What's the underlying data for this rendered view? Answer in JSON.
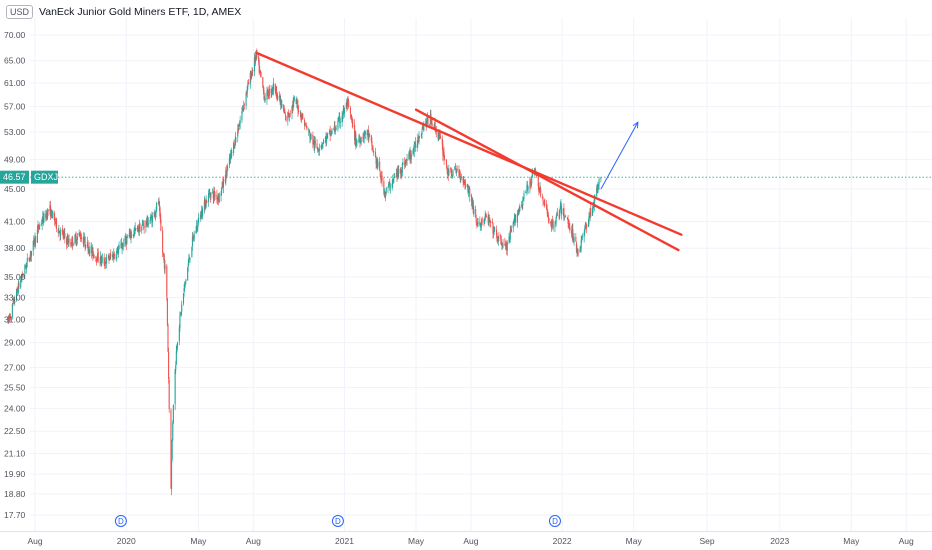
{
  "header": {
    "currency": "USD",
    "title": "VanEck Junior Gold Miners ETF, 1D, AMEX"
  },
  "colors": {
    "up": "#26a69a",
    "down": "#ef5350",
    "trendline": "#f23b2e",
    "arrow": "#2962ff",
    "last_price_line": "#26a69a",
    "symbol_tag": "#26a69a"
  },
  "chart_data": {
    "type": "candlestick",
    "symbol": "GDXJ",
    "last_price": 46.57,
    "last_price_label": "46.57",
    "y_scale": "log",
    "ylim": [
      17.0,
      72.0
    ],
    "y_ticks": [
      "70.00",
      "65.00",
      "61.00",
      "57.00",
      "53.00",
      "49.00",
      "45.00",
      "41.00",
      "38.00",
      "35.00",
      "33.00",
      "31.00",
      "29.00",
      "27.00",
      "25.50",
      "24.00",
      "22.50",
      "21.10",
      "19.90",
      "18.80",
      "17.70"
    ],
    "x_range": [
      "2019-06-15",
      "2023-09-15"
    ],
    "x_ticks": [
      {
        "label": "Aug",
        "date": "2019-08-01"
      },
      {
        "label": "2020",
        "date": "2020-01-01"
      },
      {
        "label": "May",
        "date": "2020-05-01"
      },
      {
        "label": "Aug",
        "date": "2020-08-01"
      },
      {
        "label": "2021",
        "date": "2021-01-01"
      },
      {
        "label": "May",
        "date": "2021-05-01"
      },
      {
        "label": "Aug",
        "date": "2021-08-01"
      },
      {
        "label": "2022",
        "date": "2022-01-01"
      },
      {
        "label": "May",
        "date": "2022-05-01"
      },
      {
        "label": "Sep",
        "date": "2022-09-01"
      },
      {
        "label": "2023",
        "date": "2023-01-01"
      },
      {
        "label": "May",
        "date": "2023-05-01"
      },
      {
        "label": "Aug",
        "date": "2023-08-01"
      }
    ],
    "price_path": [
      [
        "2019-06-17",
        30.8
      ],
      [
        "2019-07-05",
        34.2
      ],
      [
        "2019-07-25",
        37.5
      ],
      [
        "2019-08-08",
        40.5
      ],
      [
        "2019-08-25",
        42.5
      ],
      [
        "2019-09-10",
        40.0
      ],
      [
        "2019-09-28",
        38.5
      ],
      [
        "2019-10-15",
        39.5
      ],
      [
        "2019-11-05",
        37.5
      ],
      [
        "2019-11-25",
        36.5
      ],
      [
        "2019-12-15",
        37.5
      ],
      [
        "2020-01-08",
        39.5
      ],
      [
        "2020-01-28",
        40.5
      ],
      [
        "2020-02-15",
        41.5
      ],
      [
        "2020-02-24",
        43.5
      ],
      [
        "2020-03-01",
        38.0
      ],
      [
        "2020-03-08",
        35.0
      ],
      [
        "2020-03-13",
        24.0
      ],
      [
        "2020-03-16",
        19.3
      ],
      [
        "2020-03-20",
        24.5
      ],
      [
        "2020-03-26",
        29.0
      ],
      [
        "2020-04-05",
        33.0
      ],
      [
        "2020-04-20",
        38.5
      ],
      [
        "2020-05-05",
        42.0
      ],
      [
        "2020-05-20",
        44.5
      ],
      [
        "2020-06-05",
        44.0
      ],
      [
        "2020-06-20",
        48.0
      ],
      [
        "2020-07-08",
        54.0
      ],
      [
        "2020-07-22",
        60.0
      ],
      [
        "2020-08-06",
        66.0
      ],
      [
        "2020-08-20",
        58.5
      ],
      [
        "2020-09-05",
        60.5
      ],
      [
        "2020-09-25",
        55.0
      ],
      [
        "2020-10-10",
        58.0
      ],
      [
        "2020-11-01",
        53.0
      ],
      [
        "2020-11-15",
        50.5
      ],
      [
        "2020-12-01",
        52.0
      ],
      [
        "2020-12-20",
        54.0
      ],
      [
        "2021-01-06",
        57.5
      ],
      [
        "2021-01-20",
        51.5
      ],
      [
        "2021-02-08",
        53.0
      ],
      [
        "2021-02-26",
        48.0
      ],
      [
        "2021-03-10",
        44.5
      ],
      [
        "2021-03-26",
        46.5
      ],
      [
        "2021-04-12",
        48.5
      ],
      [
        "2021-04-28",
        50.5
      ],
      [
        "2021-05-12",
        54.0
      ],
      [
        "2021-05-26",
        55.0
      ],
      [
        "2021-06-10",
        52.0
      ],
      [
        "2021-06-24",
        47.0
      ],
      [
        "2021-07-10",
        47.5
      ],
      [
        "2021-07-28",
        45.0
      ],
      [
        "2021-08-12",
        40.5
      ],
      [
        "2021-08-28",
        41.5
      ],
      [
        "2021-09-15",
        39.0
      ],
      [
        "2021-09-30",
        38.0
      ],
      [
        "2021-10-15",
        41.5
      ],
      [
        "2021-11-01",
        44.5
      ],
      [
        "2021-11-15",
        47.5
      ],
      [
        "2021-11-29",
        43.5
      ],
      [
        "2021-12-15",
        40.5
      ],
      [
        "2021-12-30",
        42.5
      ],
      [
        "2022-01-14",
        40.5
      ],
      [
        "2022-01-28",
        37.5
      ],
      [
        "2022-02-10",
        40.5
      ],
      [
        "2022-02-24",
        43.5
      ],
      [
        "2022-03-07",
        46.8
      ]
    ],
    "dividends": [
      {
        "date": "2019-12-23",
        "label": "D"
      },
      {
        "date": "2020-12-21",
        "label": "D"
      },
      {
        "date": "2021-12-20",
        "label": "D"
      }
    ],
    "drawings": {
      "trendlines": [
        {
          "from": [
            "2020-08-06",
            66.5
          ],
          "to": [
            "2022-07-20",
            39.5
          ]
        },
        {
          "from": [
            "2021-05-01",
            56.5
          ],
          "to": [
            "2022-07-15",
            37.8
          ]
        }
      ],
      "arrow": {
        "from": [
          "2022-03-07",
          45.0
        ],
        "to": [
          "2022-05-08",
          54.5
        ]
      }
    }
  }
}
